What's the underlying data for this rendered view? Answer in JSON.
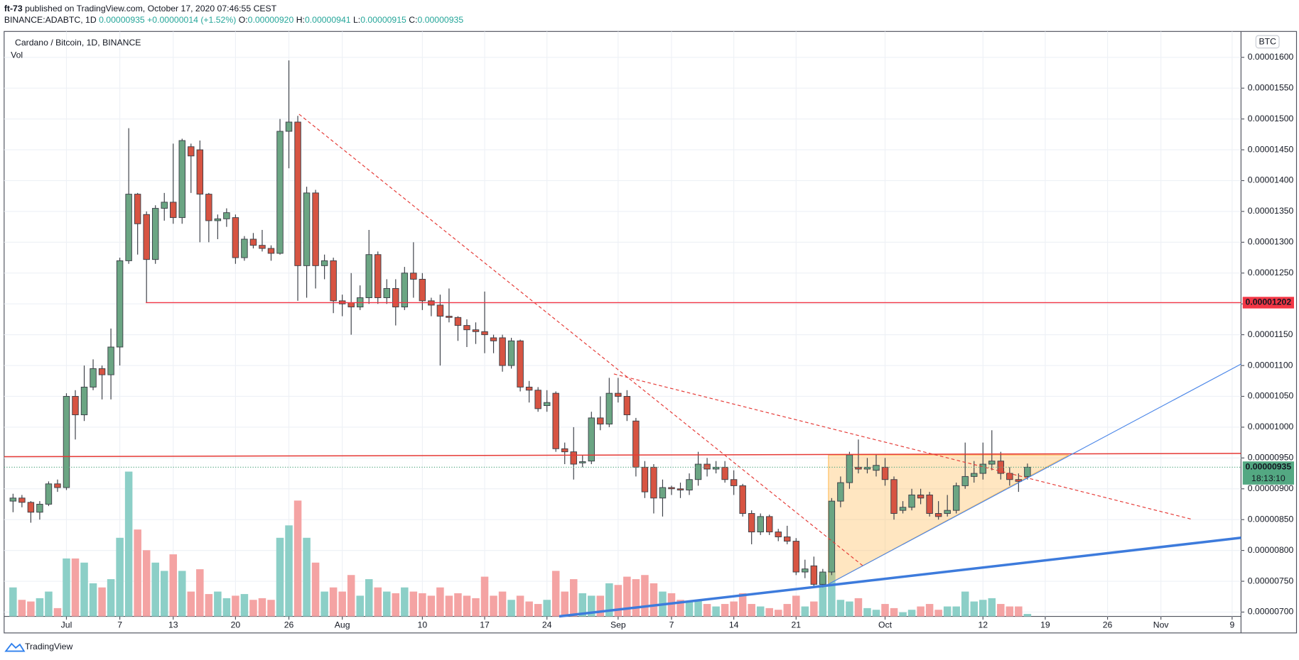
{
  "header": {
    "author": "ft-73",
    "published": "published on TradingView.com, October 17, 2020 07:46:55 CEST",
    "symbol": "BINANCE:ADABTC, 1D",
    "last": "0.00000935",
    "change": "+0.00000014 (+1.52%)",
    "ohlc": [
      {
        "label": "O:",
        "value": "0.00000920"
      },
      {
        "label": "H:",
        "value": "0.00000941"
      },
      {
        "label": "L:",
        "value": "0.00000915"
      },
      {
        "label": "C:",
        "value": "0.00000935"
      }
    ]
  },
  "chart_data": {
    "type": "candlestick",
    "title": "Cardano / Bitcoin, 1D, BINANCE",
    "volume_label": "Vol",
    "currency": "BTC",
    "x": [
      "06-25",
      "06-26",
      "06-27",
      "06-28",
      "06-29",
      "06-30",
      "07-01",
      "07-02",
      "07-03",
      "07-04",
      "07-05",
      "07-06",
      "07-07",
      "07-08",
      "07-09",
      "07-10",
      "07-11",
      "07-12",
      "07-13",
      "07-14",
      "07-15",
      "07-16",
      "07-17",
      "07-18",
      "07-19",
      "07-20",
      "07-21",
      "07-22",
      "07-23",
      "07-24",
      "07-25",
      "07-26",
      "07-27",
      "07-28",
      "07-29",
      "07-30",
      "07-31",
      "08-01",
      "08-02",
      "08-03",
      "08-04",
      "08-05",
      "08-06",
      "08-07",
      "08-08",
      "08-09",
      "08-10",
      "08-11",
      "08-12",
      "08-13",
      "08-14",
      "08-15",
      "08-16",
      "08-17",
      "08-18",
      "08-19",
      "08-20",
      "08-21",
      "08-22",
      "08-23",
      "08-24",
      "08-25",
      "08-26",
      "08-27",
      "08-28",
      "08-29",
      "08-30",
      "08-31",
      "09-01",
      "09-02",
      "09-03",
      "09-04",
      "09-05",
      "09-06",
      "09-07",
      "09-08",
      "09-09",
      "09-10",
      "09-11",
      "09-12",
      "09-13",
      "09-14",
      "09-15",
      "09-16",
      "09-17",
      "09-18",
      "09-19",
      "09-20",
      "09-21",
      "09-22",
      "09-23",
      "09-24",
      "09-25",
      "09-26",
      "09-27",
      "09-28",
      "09-29",
      "09-30",
      "10-01",
      "10-02",
      "10-03",
      "10-04",
      "10-05",
      "10-06",
      "10-07",
      "10-08",
      "10-09",
      "10-10",
      "10-11",
      "10-12",
      "10-13",
      "10-14",
      "10-15",
      "10-16",
      "10-17"
    ],
    "open": [
      8.8e-06,
      8.85e-06,
      8.78e-06,
      8.62e-06,
      8.75e-06,
      9.08e-06,
      9.02e-06,
      1.05e-05,
      1.02e-05,
      1.065e-05,
      1.095e-05,
      1.085e-05,
      1.13e-05,
      1.27e-05,
      1.378e-05,
      1.345e-05,
      1.272e-05,
      1.355e-05,
      1.365e-05,
      1.34e-05,
      1.455e-05,
      1.45e-05,
      1.378e-05,
      1.335e-05,
      1.338e-05,
      1.34e-05,
      1.275e-05,
      1.305e-05,
      1.295e-05,
      1.29e-05,
      1.282e-05,
      1.48e-05,
      1.495e-05,
      1.262e-05,
      1.38e-05,
      1.262e-05,
      1.27e-05,
      1.205e-05,
      1.202e-05,
      1.195e-05,
      1.21e-05,
      1.28e-05,
      1.21e-05,
      1.225e-05,
      1.195e-05,
      1.25e-05,
      1.24e-05,
      1.205e-05,
      1.198e-05,
      1.18e-05,
      1.178e-05,
      1.165e-05,
      1.158e-05,
      1.155e-05,
      1.145e-05,
      1.145e-05,
      1.1e-05,
      1.14e-05,
      1.065e-05,
      1.06e-05,
      1.035e-05,
      1.055e-05,
      9.65e-06,
      9.6e-06,
      9.42e-06,
      9.45e-06,
      1.015e-05,
      1.005e-05,
      1.055e-05,
      1.05e-05,
      1.01e-05,
      9.35e-06,
      9.35e-06,
      8.85e-06,
      9.02e-06,
      9e-06,
      8.98e-06,
      9.15e-06,
      9.4e-06,
      9.32e-06,
      9.35e-06,
      9.15e-06,
      9.05e-06,
      8.6e-06,
      8.3e-06,
      8.55e-06,
      8.3e-06,
      8.22e-06,
      8.15e-06,
      7.65e-06,
      7.75e-06,
      7.45e-06,
      7.65e-06,
      8.8e-06,
      9.1e-06,
      9.35e-06,
      9.32e-06,
      9.3e-06,
      9.35e-06,
      9.15e-06,
      8.65e-06,
      8.7e-06,
      8.9e-06,
      8.9e-06,
      8.6e-06,
      8.6e-06,
      8.65e-06,
      9.05e-06,
      9.2e-06,
      9.25e-06,
      9.4e-06,
      9.45e-06,
      9.25e-06,
      9.15e-06,
      9.2e-06
    ],
    "high": [
      8.92e-06,
      8.9e-06,
      8.8e-06,
      8.8e-06,
      9.12e-06,
      9.15e-06,
      1.055e-05,
      1.06e-05,
      1.1e-05,
      1.11e-05,
      1.1e-05,
      1.16e-05,
      1.275e-05,
      1.485e-05,
      1.38e-05,
      1.35e-05,
      1.36e-05,
      1.38e-05,
      1.46e-05,
      1.468e-05,
      1.46e-05,
      1.465e-05,
      1.38e-05,
      1.345e-05,
      1.355e-05,
      1.345e-05,
      1.31e-05,
      1.315e-05,
      1.32e-05,
      1.295e-05,
      1.5e-05,
      1.595e-05,
      1.505e-05,
      1.39e-05,
      1.385e-05,
      1.28e-05,
      1.275e-05,
      1.215e-05,
      1.25e-05,
      1.23e-05,
      1.32e-05,
      1.285e-05,
      1.24e-05,
      1.24e-05,
      1.26e-05,
      1.3e-05,
      1.25e-05,
      1.21e-05,
      1.215e-05,
      1.225e-05,
      1.18e-05,
      1.175e-05,
      1.17e-05,
      1.22e-05,
      1.15e-05,
      1.15e-05,
      1.145e-05,
      1.142e-05,
      1.075e-05,
      1.065e-05,
      1.06e-05,
      1.058e-05,
      9.75e-06,
      1e-05,
      9.55e-06,
      1.025e-05,
      1.05e-05,
      1.08e-05,
      1.08e-05,
      1.06e-05,
      1.015e-05,
      9.45e-06,
      9.4e-06,
      9.15e-06,
      9.05e-06,
      9.1e-06,
      9.25e-06,
      9.6e-06,
      9.5e-06,
      9.45e-06,
      9.45e-06,
      9.3e-06,
      9.08e-06,
      8.65e-06,
      8.6e-06,
      8.58e-06,
      8.35e-06,
      8.4e-06,
      8.2e-06,
      7.85e-06,
      7.9e-06,
      7.7e-06,
      8.85e-06,
      9.2e-06,
      9.6e-06,
      9.8e-06,
      9.5e-06,
      9.55e-06,
      9.5e-06,
      9.2e-06,
      8.8e-06,
      9e-06,
      9e-06,
      8.95e-06,
      8.8e-06,
      8.9e-06,
      9.1e-06,
      9.75e-06,
      9.45e-06,
      9.75e-06,
      9.95e-06,
      9.6e-06,
      9.35e-06,
      9.25e-06,
      9.41e-06
    ],
    "low": [
      8.62e-06,
      8.7e-06,
      8.45e-06,
      8.5e-06,
      8.72e-06,
      8.95e-06,
      8.98e-06,
      9.8e-06,
      1.01e-05,
      1.06e-05,
      1.045e-05,
      1.045e-05,
      1.1e-05,
      1.265e-05,
      1.28e-05,
      1.202e-05,
      1.265e-05,
      1.335e-05,
      1.33e-05,
      1.33e-05,
      1.38e-05,
      1.3e-05,
      1.3e-05,
      1.305e-05,
      1.325e-05,
      1.265e-05,
      1.27e-05,
      1.29e-05,
      1.285e-05,
      1.27e-05,
      1.28e-05,
      1.42e-05,
      1.205e-05,
      1.21e-05,
      1.225e-05,
      1.24e-05,
      1.185e-05,
      1.18e-05,
      1.15e-05,
      1.19e-05,
      1.2e-05,
      1.2e-05,
      1.2e-05,
      1.165e-05,
      1.19e-05,
      1.21e-05,
      1.19e-05,
      1.18e-05,
      1.1e-05,
      1.17e-05,
      1.14e-05,
      1.13e-05,
      1.135e-05,
      1.12e-05,
      1.12e-05,
      1.09e-05,
      1.095e-05,
      1.058e-05,
      1.04e-05,
      1.025e-05,
      1.025e-05,
      9.6e-06,
      9.4e-06,
      9.15e-06,
      9.35e-06,
      9.4e-06,
      9.95e-06,
      1e-05,
      1.04e-05,
      1.01e-05,
      9.2e-06,
      8.85e-06,
      8.6e-06,
      8.55e-06,
      8.9e-06,
      8.85e-06,
      8.9e-06,
      9.05e-06,
      9.2e-06,
      9.25e-06,
      9.1e-06,
      8.9e-06,
      8.55e-06,
      8.1e-06,
      8.25e-06,
      8.25e-06,
      8.15e-06,
      8.1e-06,
      7.6e-06,
      7.55e-06,
      7.4e-06,
      7.4e-06,
      7.6e-06,
      8.7e-06,
      9e-06,
      9.25e-06,
      9.25e-06,
      9.2e-06,
      9.05e-06,
      8.5e-06,
      8.6e-06,
      8.65e-06,
      8.75e-06,
      8.55e-06,
      8.5e-06,
      8.55e-06,
      8.6e-06,
      9e-06,
      9.1e-06,
      9.15e-06,
      9.3e-06,
      9.15e-06,
      9.05e-06,
      8.95e-06,
      9.15e-06
    ],
    "close": [
      8.85e-06,
      8.78e-06,
      8.62e-06,
      8.75e-06,
      9.08e-06,
      9.02e-06,
      1.05e-05,
      1.02e-05,
      1.065e-05,
      1.095e-05,
      1.085e-05,
      1.13e-05,
      1.27e-05,
      1.378e-05,
      1.33e-05,
      1.272e-05,
      1.355e-05,
      1.365e-05,
      1.34e-05,
      1.465e-05,
      1.44e-05,
      1.378e-05,
      1.335e-05,
      1.338e-05,
      1.348e-05,
      1.275e-05,
      1.305e-05,
      1.295e-05,
      1.29e-05,
      1.282e-05,
      1.48e-05,
      1.495e-05,
      1.262e-05,
      1.38e-05,
      1.262e-05,
      1.27e-05,
      1.205e-05,
      1.2e-05,
      1.195e-05,
      1.21e-05,
      1.28e-05,
      1.21e-05,
      1.225e-05,
      1.195e-05,
      1.25e-05,
      1.24e-05,
      1.205e-05,
      1.198e-05,
      1.18e-05,
      1.178e-05,
      1.165e-05,
      1.158e-05,
      1.155e-05,
      1.15e-05,
      1.14e-05,
      1.1e-05,
      1.14e-05,
      1.065e-05,
      1.06e-05,
      1.03e-05,
      1.04e-05,
      9.65e-06,
      9.6e-06,
      9.4e-06,
      9.44e-06,
      1.015e-05,
      1.005e-05,
      1.055e-05,
      1.05e-05,
      1.02e-05,
      9.35e-06,
      8.95e-06,
      8.85e-06,
      9.02e-06,
      9e-06,
      8.98e-06,
      9.15e-06,
      9.4e-06,
      9.32e-06,
      9.35e-06,
      9.15e-06,
      9.05e-06,
      8.6e-06,
      8.3e-06,
      8.55e-06,
      8.3e-06,
      8.22e-06,
      8.15e-06,
      7.65e-06,
      7.7e-06,
      7.45e-06,
      7.65e-06,
      8.8e-06,
      9.1e-06,
      9.55e-06,
      9.32e-06,
      9.35e-06,
      9.38e-06,
      9.15e-06,
      8.6e-06,
      8.7e-06,
      8.9e-06,
      8.85e-06,
      8.6e-06,
      8.55e-06,
      8.65e-06,
      9.05e-06,
      9.2e-06,
      9.25e-06,
      9.4e-06,
      9.45e-06,
      9.25e-06,
      9.15e-06,
      9.12e-06,
      9.35e-06
    ],
    "volume": [
      35,
      20,
      18,
      22,
      30,
      10,
      70,
      70,
      65,
      40,
      35,
      45,
      95,
      175,
      105,
      80,
      65,
      55,
      75,
      55,
      30,
      57,
      27,
      30,
      22,
      25,
      27,
      20,
      22,
      20,
      95,
      110,
      140,
      95,
      65,
      30,
      35,
      30,
      50,
      25,
      45,
      35,
      30,
      28,
      35,
      30,
      28,
      25,
      35,
      25,
      28,
      25,
      22,
      48,
      25,
      30,
      20,
      25,
      18,
      15,
      20,
      55,
      30,
      45,
      28,
      25,
      25,
      40,
      38,
      48,
      45,
      50,
      40,
      30,
      28,
      20,
      18,
      20,
      15,
      12,
      15,
      18,
      28,
      15,
      12,
      10,
      8,
      15,
      25,
      12,
      18,
      50,
      55,
      20,
      18,
      22,
      10,
      8,
      15,
      10,
      5,
      8,
      12,
      15,
      8,
      12,
      12,
      30,
      18,
      20,
      22,
      15,
      12,
      12,
      3
    ],
    "up_color": "#6ba583",
    "down_color": "#d75442",
    "up_volume_color": "#8ccfc7",
    "down_volume_color": "#f4a3a3",
    "xlim": [
      "06-24",
      "11-10"
    ],
    "xticks": [
      {
        "value": "07-01",
        "label": "Jul"
      },
      {
        "value": "07-07",
        "label": "7"
      },
      {
        "value": "07-13",
        "label": "13"
      },
      {
        "value": "07-20",
        "label": "20"
      },
      {
        "value": "07-26",
        "label": "26"
      },
      {
        "value": "08-01",
        "label": "Aug"
      },
      {
        "value": "08-10",
        "label": "10"
      },
      {
        "value": "08-17",
        "label": "17"
      },
      {
        "value": "08-24",
        "label": "24"
      },
      {
        "value": "09-01",
        "label": "Sep"
      },
      {
        "value": "09-07",
        "label": "7"
      },
      {
        "value": "09-14",
        "label": "14"
      },
      {
        "value": "09-21",
        "label": "21"
      },
      {
        "value": "10-01",
        "label": "Oct"
      },
      {
        "value": "10-12",
        "label": "12"
      },
      {
        "value": "10-19",
        "label": "19"
      },
      {
        "value": "10-26",
        "label": "26"
      },
      {
        "value": "11-01",
        "label": "Nov"
      },
      {
        "value": "11-09",
        "label": "9"
      }
    ],
    "ylim": [
      6.93e-06,
      1.642e-05
    ],
    "yticks": [
      {
        "value": 7e-06,
        "label": "0.00000700"
      },
      {
        "value": 7.5e-06,
        "label": "0.00000750"
      },
      {
        "value": 8e-06,
        "label": "0.00000800"
      },
      {
        "value": 8.5e-06,
        "label": "0.00000850"
      },
      {
        "value": 9e-06,
        "label": "0.00000900"
      },
      {
        "value": 9.5e-06,
        "label": "0.00000950"
      },
      {
        "value": 1e-05,
        "label": "0.00001000"
      },
      {
        "value": 1.05e-05,
        "label": "0.00001050"
      },
      {
        "value": 1.1e-05,
        "label": "0.00001100"
      },
      {
        "value": 1.15e-05,
        "label": "0.00001150"
      },
      {
        "value": 1.2e-05,
        "label": "0.00001200"
      },
      {
        "value": 1.25e-05,
        "label": "0.00001250"
      },
      {
        "value": 1.3e-05,
        "label": "0.00001300"
      },
      {
        "value": 1.35e-05,
        "label": "0.00001350"
      },
      {
        "value": 1.4e-05,
        "label": "0.00001400"
      },
      {
        "value": 1.45e-05,
        "label": "0.00001450"
      },
      {
        "value": 1.5e-05,
        "label": "0.00001500"
      },
      {
        "value": 1.55e-05,
        "label": "0.00001550"
      },
      {
        "value": 1.6e-05,
        "label": "0.00001600"
      }
    ],
    "grid": true,
    "price_line": {
      "value": 1.202e-05,
      "color": "#f23645"
    },
    "last_price": {
      "value": 9.35e-06,
      "countdown": "18:13:10",
      "color": "#53a882"
    }
  },
  "footer": {
    "brand": "TradingView"
  }
}
